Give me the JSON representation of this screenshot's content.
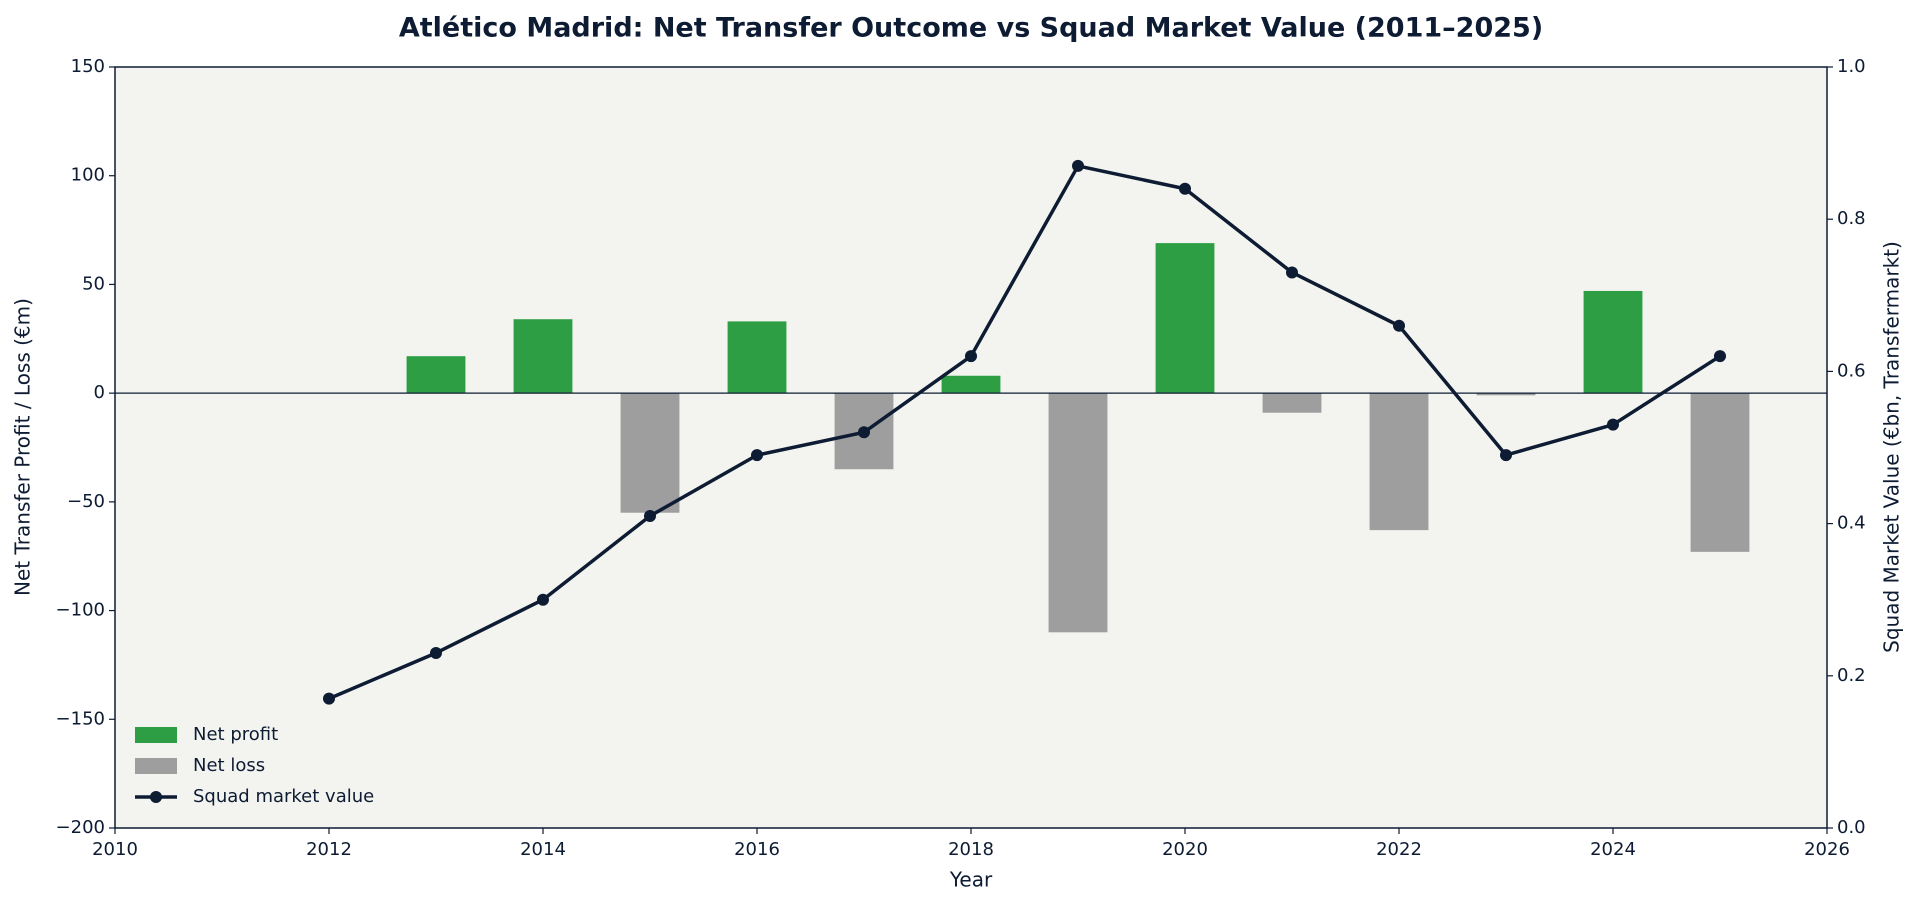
{
  "chart_data": {
    "type": "bar",
    "title": "Atlético Madrid: Net Transfer Outcome vs Squad Market Value (2011–2025)",
    "xlabel": "Year",
    "ylabel": "Net Transfer Profit / Loss (€m)",
    "y2label": "Squad Market Value (€bn, Transfermarkt)",
    "x": [
      2012,
      2013,
      2014,
      2015,
      2016,
      2017,
      2018,
      2019,
      2020,
      2021,
      2022,
      2023,
      2024,
      2025
    ],
    "series": [
      {
        "name": "Net profit",
        "type": "bar",
        "color": "#2e9e44",
        "values": [
          null,
          17,
          34,
          null,
          33,
          null,
          8,
          null,
          69,
          null,
          null,
          null,
          47,
          null
        ]
      },
      {
        "name": "Net loss",
        "type": "bar",
        "color": "#9e9e9e",
        "values": [
          null,
          null,
          null,
          -55,
          null,
          -35,
          null,
          -110,
          null,
          -9,
          -63,
          -1,
          null,
          -73
        ]
      },
      {
        "name": "Squad market value",
        "type": "line",
        "axis": "y2",
        "color": "#0d1b33",
        "values": [
          0.17,
          0.23,
          0.3,
          0.41,
          0.49,
          0.52,
          0.62,
          0.87,
          0.84,
          0.73,
          0.66,
          0.49,
          0.53,
          0.62
        ]
      }
    ],
    "xlim": [
      2010,
      2026
    ],
    "xticks": [
      2010,
      2012,
      2014,
      2016,
      2018,
      2020,
      2022,
      2024,
      2026
    ],
    "ylim": [
      -200,
      150
    ],
    "yticks": [
      {
        "value": -200,
        "label": "−200"
      },
      {
        "value": -150,
        "label": "−150"
      },
      {
        "value": -100,
        "label": "−100"
      },
      {
        "value": -50,
        "label": "−50"
      },
      0,
      50,
      100,
      150
    ],
    "y2lim": [
      0,
      1
    ],
    "y2ticks": [
      {
        "value": 0,
        "label": "0.0"
      },
      0.2,
      0.4,
      0.6,
      0.8,
      {
        "value": 1,
        "label": "1.0"
      }
    ],
    "legend": "lower left",
    "background": "#f3f4ef"
  }
}
